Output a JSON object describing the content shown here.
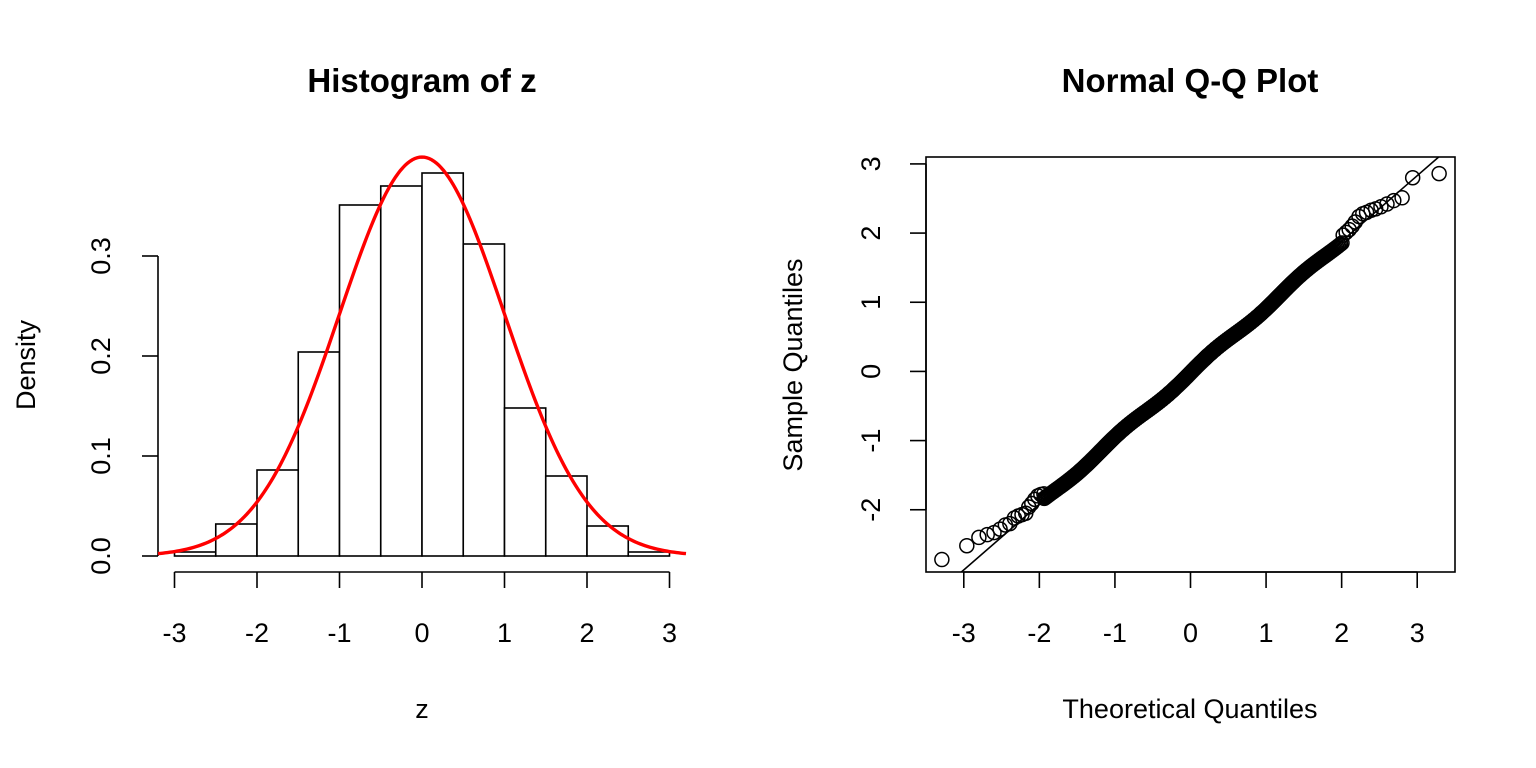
{
  "chart_data": [
    {
      "type": "histogram",
      "title": "Histogram of z",
      "xlabel": "z",
      "ylabel": "Density",
      "xlim": [
        -3.2,
        3.2
      ],
      "ylim": [
        0,
        0.4
      ],
      "xticks": [
        "-3",
        "-2",
        "-1",
        "0",
        "1",
        "2",
        "3"
      ],
      "xtick_values": [
        -3,
        -2,
        -1,
        0,
        1,
        2,
        3
      ],
      "yticks": [
        "0.0",
        "0.1",
        "0.2",
        "0.3"
      ],
      "ytick_values": [
        0.0,
        0.1,
        0.2,
        0.3
      ],
      "bin_edges": [
        -3.0,
        -2.5,
        -2.0,
        -1.5,
        -1.0,
        -0.5,
        0.0,
        0.5,
        1.0,
        1.5,
        2.0,
        2.5,
        3.0
      ],
      "density": [
        0.004,
        0.032,
        0.086,
        0.204,
        0.351,
        0.37,
        0.383,
        0.312,
        0.148,
        0.08,
        0.03,
        0.004
      ],
      "bar_fill": "#ffffff",
      "bar_stroke": "#000000",
      "overlay": {
        "type": "line",
        "curve": "normal-density",
        "mean": 0,
        "sd": 1,
        "color": "#ff0000"
      }
    },
    {
      "type": "scatter",
      "title": "Normal Q-Q Plot",
      "xlabel": "Theoretical Quantiles",
      "ylabel": "Sample Quantiles",
      "xlim": [
        -3.5,
        3.5
      ],
      "ylim": [
        -2.9,
        3.1
      ],
      "xticks": [
        "-3",
        "-2",
        "-1",
        "0",
        "1",
        "2",
        "3"
      ],
      "xtick_values": [
        -3,
        -2,
        -1,
        0,
        1,
        2,
        3
      ],
      "yticks": [
        "-2",
        "-1",
        "0",
        "1",
        "2",
        "3"
      ],
      "ytick_values": [
        -2,
        -1,
        0,
        1,
        2,
        3
      ],
      "marker": "open-circle",
      "marker_color": "#000000",
      "reference_line": {
        "slope": 0.95,
        "intercept": -0.02,
        "color": "#000000"
      },
      "sample_size": 1000,
      "points": [
        [
          -3.29,
          -2.72
        ],
        [
          -2.96,
          -2.52
        ],
        [
          -2.8,
          -2.4
        ],
        [
          -2.69,
          -2.36
        ],
        [
          -2.6,
          -2.33
        ],
        [
          -2.52,
          -2.28
        ],
        [
          -2.45,
          -2.22
        ],
        [
          -2.39,
          -2.2
        ],
        [
          -2.33,
          -2.12
        ],
        [
          -2.28,
          -2.09
        ],
        [
          -2.23,
          -2.07
        ],
        [
          -2.18,
          -2.05
        ],
        [
          -2.14,
          -1.96
        ],
        [
          -2.1,
          -1.91
        ],
        [
          -2.06,
          -1.85
        ],
        [
          -2.02,
          -1.8
        ],
        [
          -1.98,
          -1.78
        ],
        [
          -1.94,
          -1.77
        ],
        [
          2.94,
          2.8
        ],
        [
          3.29,
          2.86
        ],
        [
          2.8,
          2.51
        ],
        [
          2.69,
          2.47
        ],
        [
          2.6,
          2.42
        ],
        [
          2.52,
          2.38
        ],
        [
          2.45,
          2.35
        ],
        [
          2.39,
          2.33
        ],
        [
          2.33,
          2.3
        ],
        [
          2.28,
          2.28
        ],
        [
          2.23,
          2.24
        ],
        [
          2.18,
          2.16
        ],
        [
          2.14,
          2.1
        ],
        [
          2.1,
          2.05
        ],
        [
          2.06,
          2.01
        ],
        [
          2.02,
          1.97
        ]
      ]
    }
  ]
}
